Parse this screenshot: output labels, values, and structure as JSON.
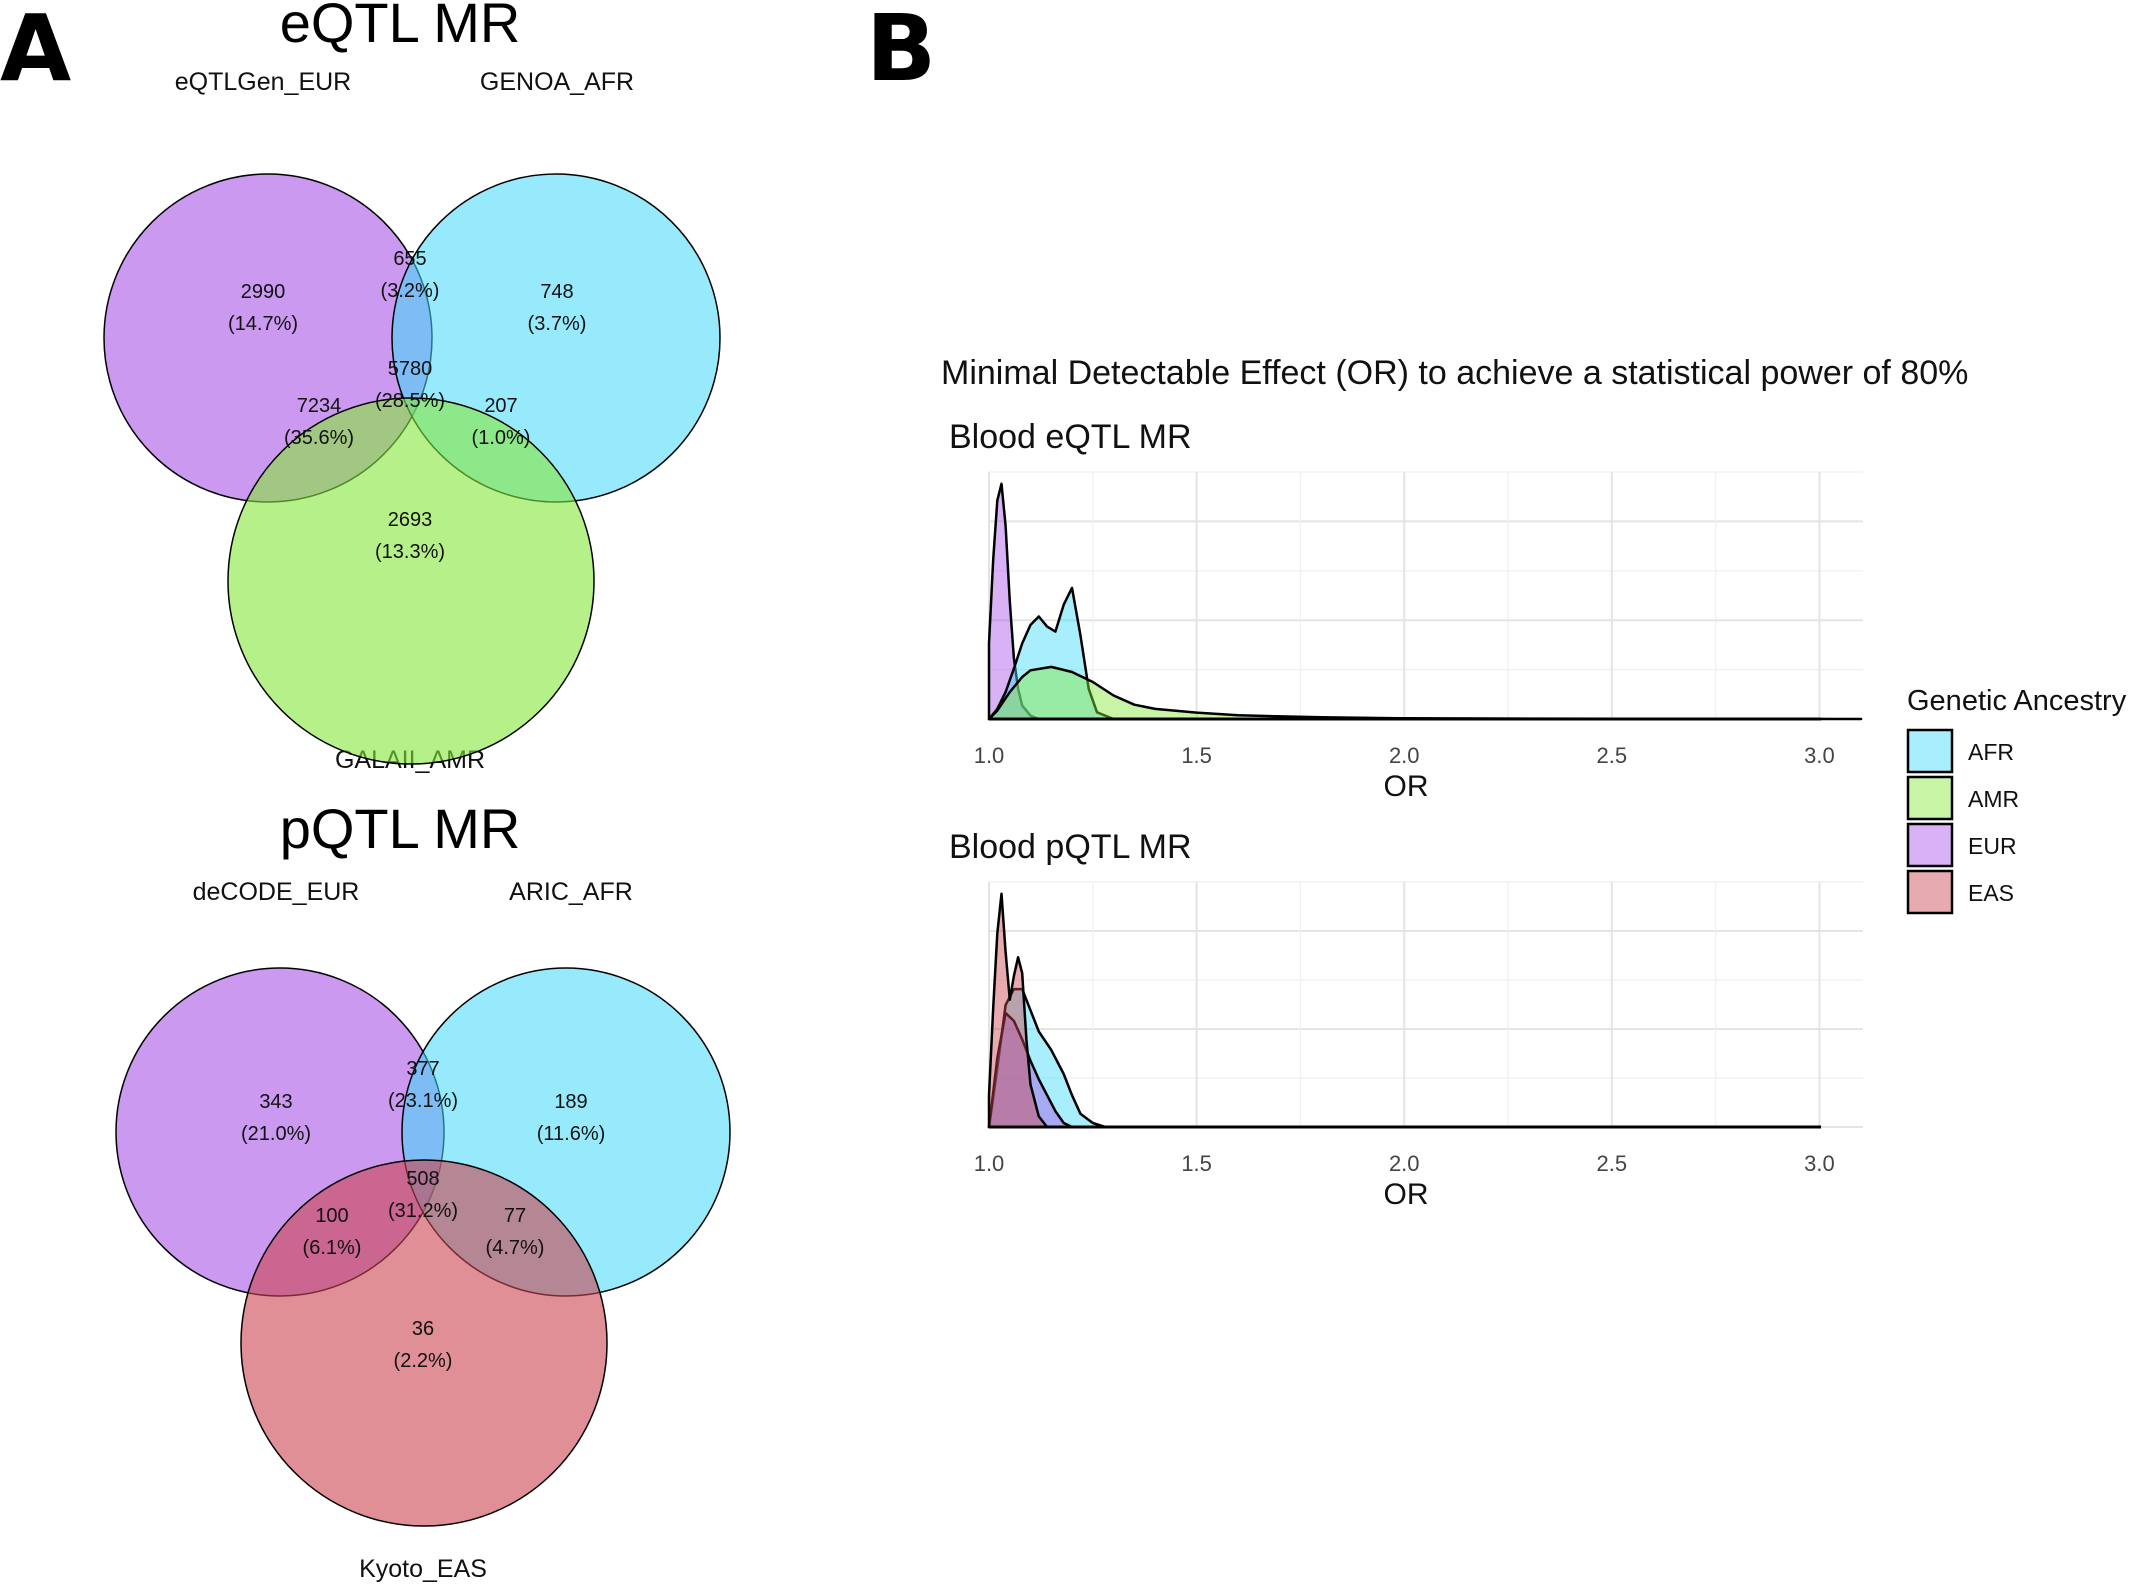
{
  "panel_a": {
    "letter": "A",
    "venns": [
      {
        "title": "eQTL MR",
        "sets": [
          {
            "label": "eQTLGen_EUR",
            "color": "#A855E6"
          },
          {
            "label": "GENOA_AFR",
            "color": "#3FD9FA"
          },
          {
            "label": "GALAII_AMR",
            "color": "#86E63A"
          }
        ],
        "regions": [
          {
            "key": "A_only",
            "value": "2990",
            "pct": "(14.7%)"
          },
          {
            "key": "AB",
            "value": "655",
            "pct": "(3.2%)"
          },
          {
            "key": "B_only",
            "value": "748",
            "pct": "(3.7%)"
          },
          {
            "key": "ABC",
            "value": "5780",
            "pct": "(28.5%)"
          },
          {
            "key": "AC",
            "value": "7234",
            "pct": "(35.6%)"
          },
          {
            "key": "BC",
            "value": "207",
            "pct": "(1.0%)"
          },
          {
            "key": "C_only",
            "value": "2693",
            "pct": "(13.3%)"
          }
        ]
      },
      {
        "title": "pQTL MR",
        "sets": [
          {
            "label": "deCODE_EUR",
            "color": "#A855E6"
          },
          {
            "label": "ARIC_AFR",
            "color": "#3FD9FA"
          },
          {
            "label": "Kyoto_EAS",
            "color": "#C9444E"
          }
        ],
        "regions": [
          {
            "key": "A_only",
            "value": "343",
            "pct": "(21.0%)"
          },
          {
            "key": "AB",
            "value": "377",
            "pct": "(23.1%)"
          },
          {
            "key": "B_only",
            "value": "189",
            "pct": "(11.6%)"
          },
          {
            "key": "ABC",
            "value": "508",
            "pct": "(31.2%)"
          },
          {
            "key": "AC",
            "value": "100",
            "pct": "(6.1%)"
          },
          {
            "key": "BC",
            "value": "77",
            "pct": "(4.7%)"
          },
          {
            "key": "C_only",
            "value": "36",
            "pct": "(2.2%)"
          }
        ]
      }
    ]
  },
  "panel_b": {
    "letter": "B",
    "title": "Minimal Detectable Effect (OR) to achieve a statistical power of 80%",
    "legend_title": "Genetic Ancestry",
    "legend": [
      {
        "label": "AFR",
        "color": "#3FD9FA"
      },
      {
        "label": "AMR",
        "color": "#86E63A"
      },
      {
        "label": "EUR",
        "color": "#A855E6"
      },
      {
        "label": "EAS",
        "color": "#C9444E"
      }
    ]
  },
  "chart_data": [
    {
      "type": "area",
      "subtype": "density",
      "title": "Blood eQTL MR",
      "xlabel": "OR",
      "ylabel": "",
      "xlim": [
        1.0,
        3.1
      ],
      "xticks": [
        "1.0",
        "1.5",
        "2.0",
        "2.5",
        "3.0"
      ],
      "grid": true,
      "legend_position": "right",
      "series": [
        {
          "name": "EUR",
          "color": "#A855E6",
          "x": [
            1.0,
            1.01,
            1.02,
            1.03,
            1.04,
            1.05,
            1.06,
            1.07,
            1.08,
            1.1,
            1.12
          ],
          "y": [
            4.5,
            9.5,
            13.0,
            14.0,
            11.5,
            7.0,
            3.6,
            1.8,
            0.8,
            0.2,
            0.0
          ]
        },
        {
          "name": "AFR",
          "color": "#3FD9FA",
          "x": [
            1.0,
            1.02,
            1.04,
            1.06,
            1.08,
            1.1,
            1.12,
            1.14,
            1.16,
            1.18,
            1.2,
            1.22,
            1.24,
            1.26,
            1.3
          ],
          "y": [
            0.0,
            0.6,
            1.6,
            3.0,
            4.5,
            5.6,
            6.1,
            5.5,
            5.2,
            6.8,
            7.8,
            5.0,
            1.8,
            0.4,
            0.0
          ]
        },
        {
          "name": "AMR",
          "color": "#86E63A",
          "x": [
            1.0,
            1.02,
            1.05,
            1.08,
            1.1,
            1.15,
            1.2,
            1.25,
            1.3,
            1.35,
            1.4,
            1.5,
            1.6,
            1.8,
            2.0,
            2.5,
            3.1
          ],
          "y": [
            0.0,
            0.5,
            1.6,
            2.5,
            2.9,
            3.1,
            2.8,
            2.2,
            1.4,
            0.85,
            0.6,
            0.38,
            0.22,
            0.1,
            0.04,
            0.01,
            0.0
          ]
        },
        {
          "name": "EAS",
          "color": "#C9444E",
          "x": [],
          "y": []
        }
      ]
    },
    {
      "type": "area",
      "subtype": "density",
      "title": "Blood pQTL MR",
      "xlabel": "OR",
      "ylabel": "",
      "xlim": [
        1.0,
        3.1
      ],
      "xticks": [
        "1.0",
        "1.5",
        "2.0",
        "2.5",
        "3.0"
      ],
      "grid": true,
      "legend_position": "right",
      "series": [
        {
          "name": "AFR",
          "color": "#3FD9FA",
          "x": [
            1.0,
            1.02,
            1.04,
            1.06,
            1.08,
            1.1,
            1.12,
            1.15,
            1.18,
            1.2,
            1.22,
            1.25,
            1.28
          ],
          "y": [
            0.0,
            2.2,
            4.6,
            5.2,
            5.2,
            4.4,
            3.6,
            2.9,
            2.0,
            1.2,
            0.5,
            0.15,
            0.0
          ]
        },
        {
          "name": "EUR",
          "color": "#A855E6",
          "x": [
            1.0,
            1.02,
            1.04,
            1.06,
            1.08,
            1.1,
            1.12,
            1.14,
            1.16,
            1.18,
            1.2
          ],
          "y": [
            0.0,
            2.6,
            4.3,
            4.0,
            3.3,
            2.5,
            1.8,
            1.2,
            0.6,
            0.15,
            0.0
          ]
        },
        {
          "name": "EAS",
          "color": "#C9444E",
          "x": [
            1.0,
            1.01,
            1.02,
            1.03,
            1.04,
            1.05,
            1.06,
            1.07,
            1.08,
            1.09,
            1.1,
            1.12,
            1.14
          ],
          "y": [
            1.2,
            4.5,
            7.3,
            8.8,
            6.6,
            4.8,
            5.7,
            6.4,
            5.8,
            3.3,
            1.6,
            0.4,
            0.0
          ]
        },
        {
          "name": "AMR",
          "color": "#86E63A",
          "x": [],
          "y": []
        }
      ]
    }
  ]
}
